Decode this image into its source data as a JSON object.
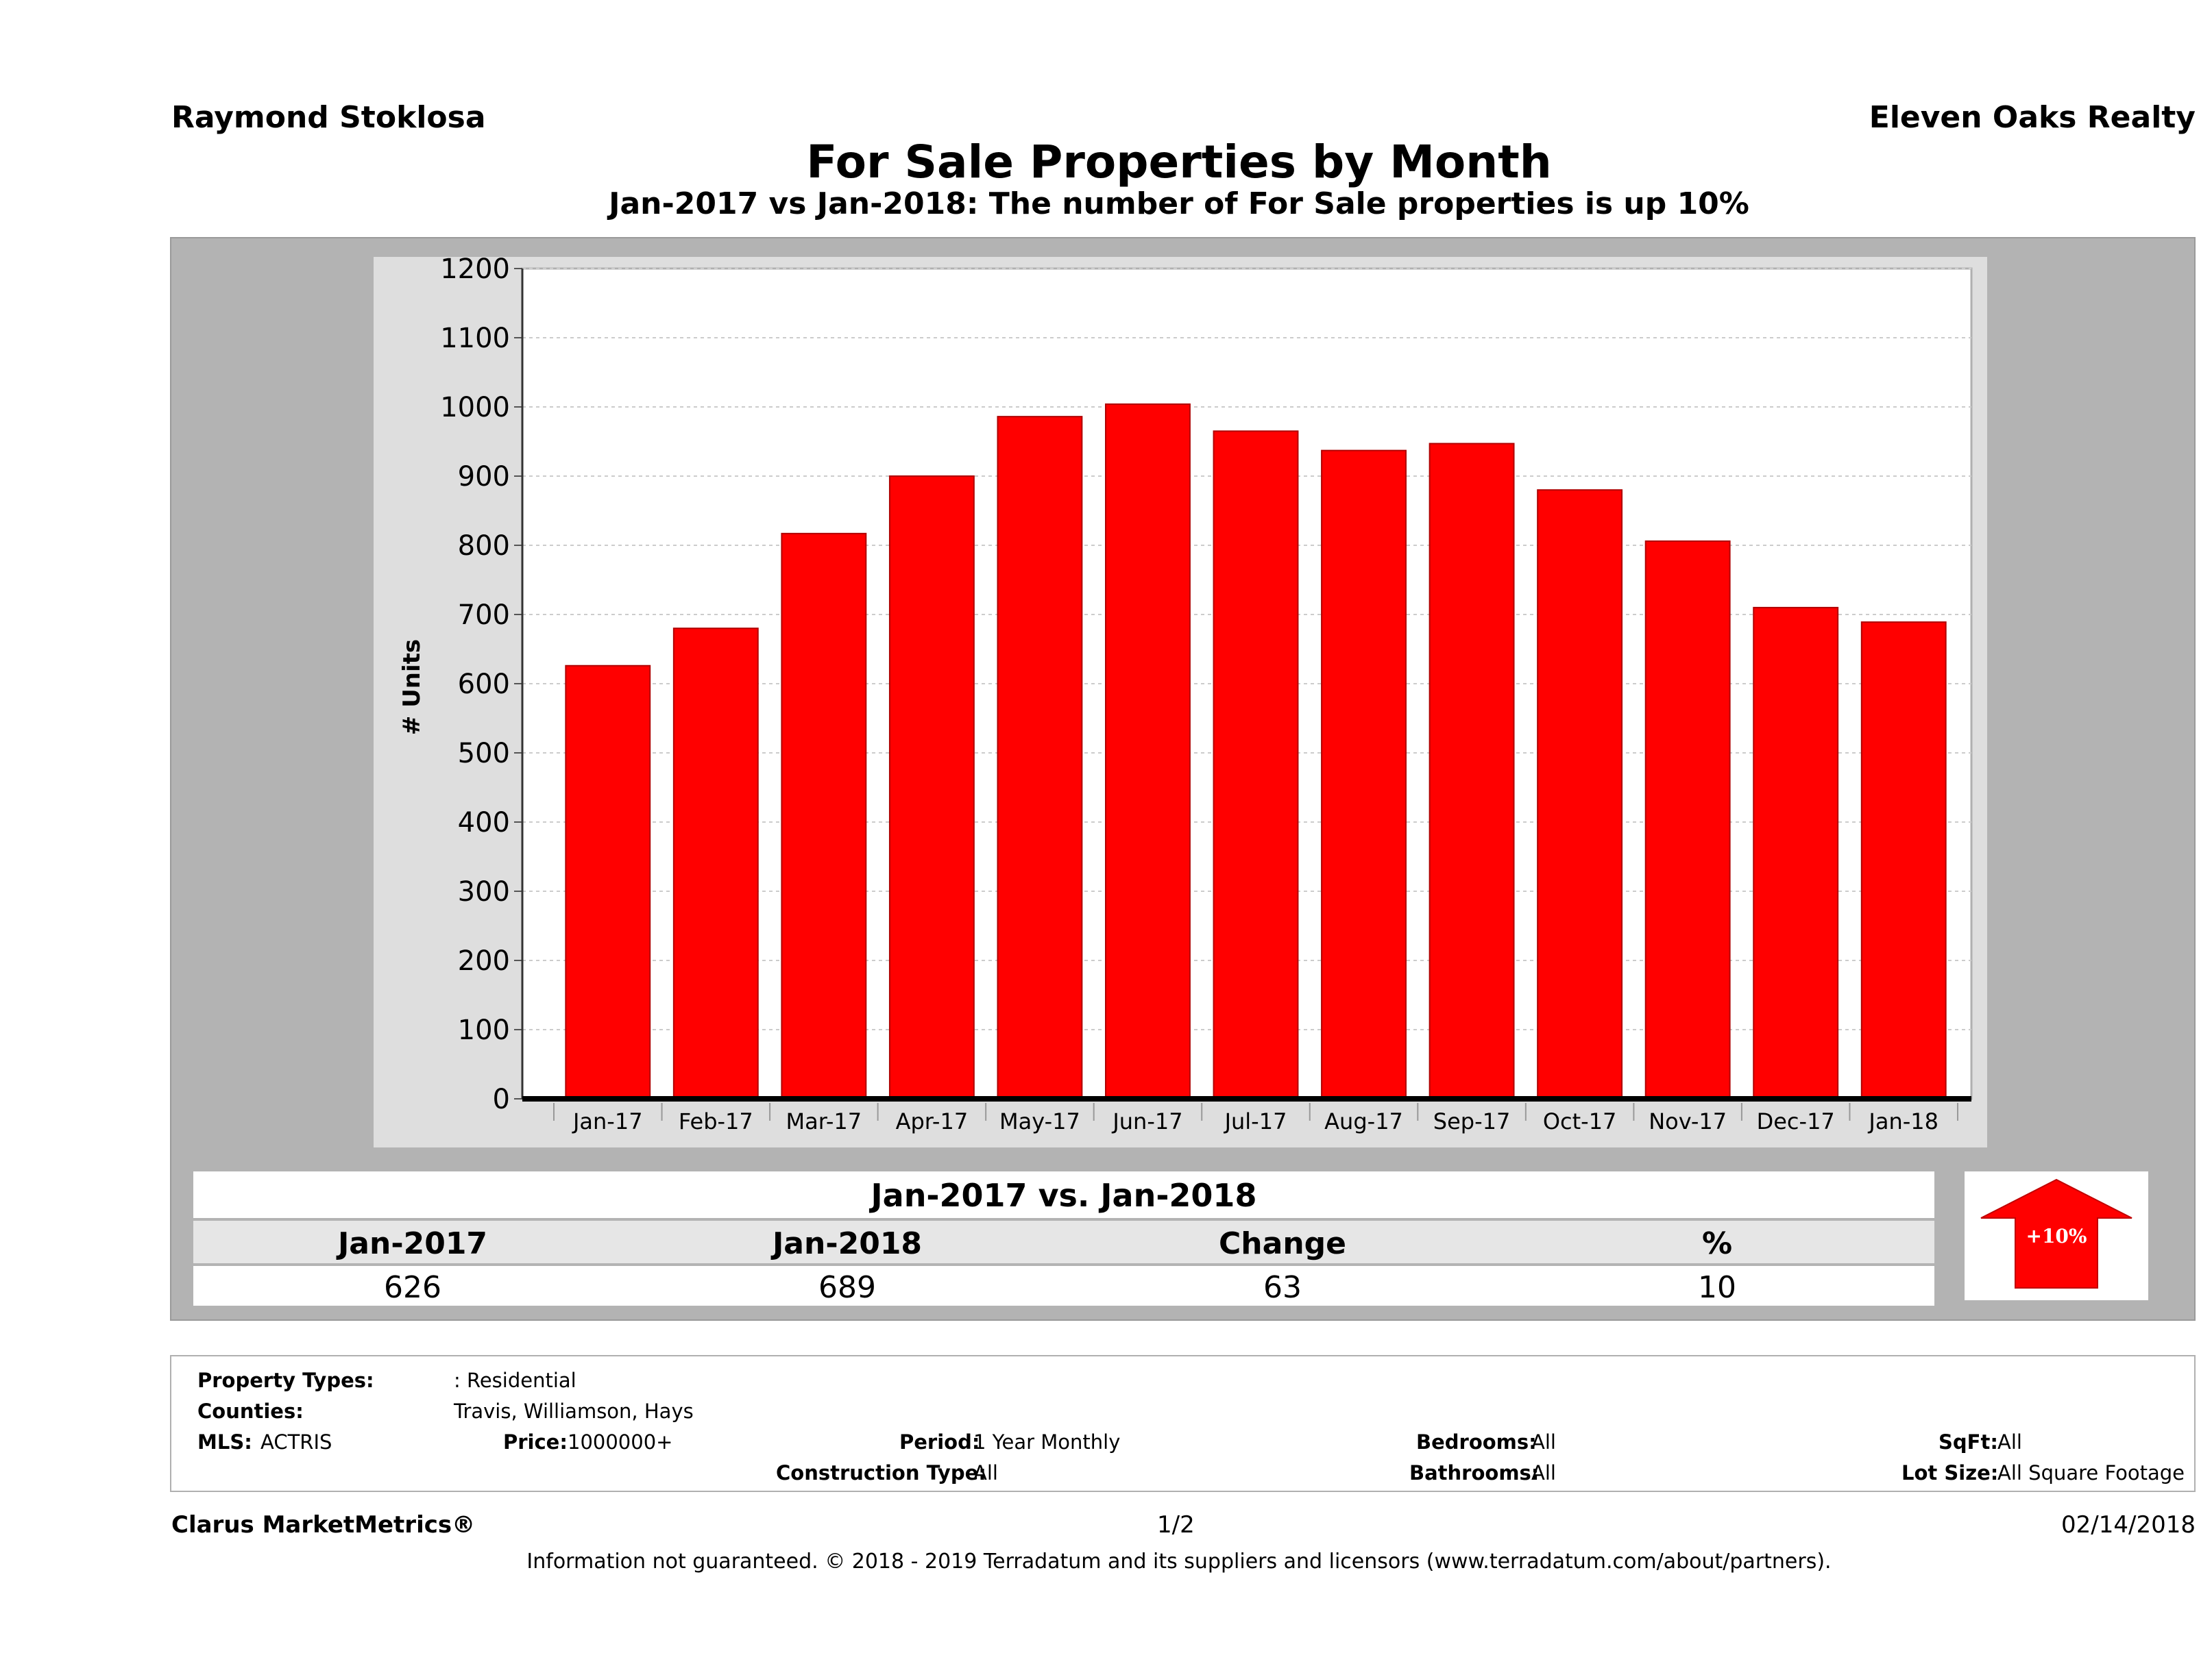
{
  "header": {
    "agent": "Raymond Stoklosa",
    "company": "Eleven Oaks Realty",
    "title": "For Sale Properties by Month",
    "subtitle": "Jan-2017 vs Jan-2018: The number of For Sale  properties is up 10%"
  },
  "chart_data": {
    "type": "bar",
    "categories": [
      "Jan-17",
      "Feb-17",
      "Mar-17",
      "Apr-17",
      "May-17",
      "Jun-17",
      "Jul-17",
      "Aug-17",
      "Sep-17",
      "Oct-17",
      "Nov-17",
      "Dec-17",
      "Jan-18"
    ],
    "values": [
      626,
      680,
      817,
      900,
      986,
      1004,
      965,
      937,
      947,
      880,
      806,
      710,
      689
    ],
    "ylabel": "# Units",
    "ylim": [
      0,
      1200
    ],
    "yticks": [
      0,
      100,
      200,
      300,
      400,
      500,
      600,
      700,
      800,
      900,
      1000,
      1100,
      1200
    ],
    "bar_color": "#ff0000",
    "grid": true
  },
  "summary": {
    "title": "Jan-2017 vs. Jan-2018",
    "headers": [
      "Jan-2017",
      "Jan-2018",
      "Change",
      "%"
    ],
    "values": [
      "626",
      "689",
      "63",
      "10"
    ],
    "badge": "+10%",
    "badge_color": "#ff0000"
  },
  "criteria": {
    "property_types_label": "Property Types:",
    "property_types_value": ": Residential",
    "counties_label": "Counties:",
    "counties_value": "Travis, Williamson, Hays",
    "mls_label": "MLS:",
    "mls_value": "ACTRIS",
    "price_label": "Price:",
    "price_value": "1000000+",
    "period_label": "Period:",
    "period_value": "1 Year Monthly",
    "construction_label": "Construction Type:",
    "construction_value": "All",
    "bedrooms_label": "Bedrooms:",
    "bedrooms_value": "All",
    "bathrooms_label": "Bathrooms:",
    "bathrooms_value": "All",
    "sqft_label": "SqFt:",
    "sqft_value": "All",
    "lotsize_label": "Lot Size:",
    "lotsize_value": "All Square Footage"
  },
  "footer": {
    "brand": "Clarus MarketMetrics®",
    "page": "1/2",
    "date": "02/14/2018",
    "disclaimer": "Information not guaranteed. © 2018 - 2019 Terradatum and its suppliers and licensors (www.terradatum.com/about/partners)."
  }
}
